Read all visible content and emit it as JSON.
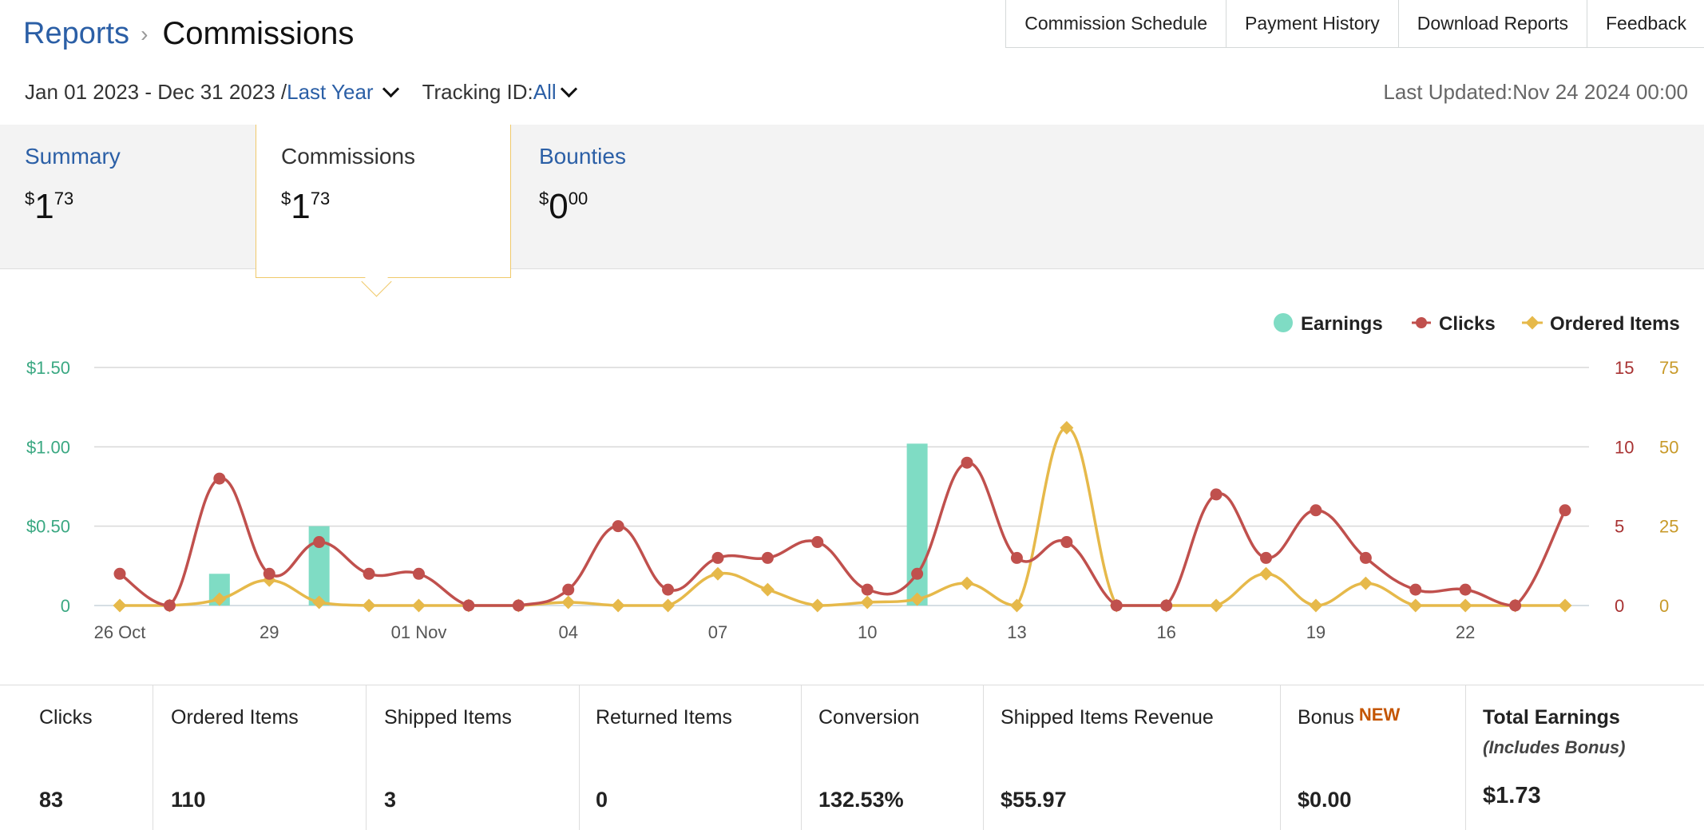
{
  "header": {
    "breadcrumb_parent": "Reports",
    "breadcrumb_current": "Commissions",
    "nav": [
      "Commission Schedule",
      "Payment History",
      "Download Reports",
      "Feedback"
    ],
    "date_range": "Jan 01 2023 - Dec 31 2023 /",
    "date_preset": "Last Year",
    "tracking_label": "Tracking ID:",
    "tracking_value": "All",
    "last_updated": "Last Updated:Nov 24 2024 00:00"
  },
  "tabs": [
    {
      "title": "Summary",
      "dollars": "1",
      "cents": "73"
    },
    {
      "title": "Commissions",
      "dollars": "1",
      "cents": "73"
    },
    {
      "title": "Bounties",
      "dollars": "0",
      "cents": "00"
    }
  ],
  "legend": [
    "Earnings",
    "Clicks",
    "Ordered Items"
  ],
  "colors": {
    "earnings": "#7fdcc4",
    "clicks": "#c0504d",
    "ordered": "#e6b94a",
    "left_axis": "#3aa882",
    "right_axis1": "#a83232",
    "right_axis2": "#c89a2a"
  },
  "chart_data": {
    "type": "line",
    "x": [
      "26 Oct",
      "27",
      "28",
      "29",
      "30",
      "31",
      "01 Nov",
      "02",
      "03",
      "04",
      "05",
      "06",
      "07",
      "08",
      "09",
      "10",
      "11",
      "12",
      "13",
      "14",
      "15",
      "16",
      "17",
      "18",
      "19",
      "20",
      "21",
      "22",
      "23",
      "24"
    ],
    "x_tick_labels": [
      "26 Oct",
      "29",
      "01 Nov",
      "04",
      "07",
      "10",
      "13",
      "16",
      "19",
      "22"
    ],
    "series": [
      {
        "name": "Earnings",
        "kind": "bar",
        "axis": "left",
        "values": [
          0,
          0,
          0.2,
          0,
          0.5,
          0,
          0,
          0,
          0,
          0,
          0,
          0,
          0,
          0,
          0,
          0,
          1.02,
          0,
          0,
          0,
          0,
          0,
          0,
          0,
          0,
          0,
          0,
          0,
          0,
          0
        ]
      },
      {
        "name": "Clicks",
        "kind": "line",
        "axis": "right1",
        "values": [
          2,
          0,
          8,
          2,
          4,
          2,
          2,
          0,
          0,
          1,
          5,
          1,
          3,
          3,
          4,
          1,
          2,
          9,
          3,
          4,
          0,
          0,
          7,
          3,
          6,
          3,
          1,
          1,
          0,
          6
        ]
      },
      {
        "name": "Ordered Items",
        "kind": "line",
        "axis": "right2",
        "values": [
          0,
          0,
          2,
          8,
          1,
          0,
          0,
          0,
          0,
          1,
          0,
          0,
          10,
          5,
          0,
          1,
          2,
          7,
          0,
          56,
          0,
          0,
          0,
          10,
          0,
          7,
          0,
          0,
          0,
          0
        ]
      }
    ],
    "y_left": {
      "ticks": [
        "0",
        "$0.50",
        "$1.00",
        "$1.50"
      ],
      "max": 1.5
    },
    "y_right1": {
      "ticks": [
        "0",
        "5",
        "10",
        "15"
      ],
      "max": 15
    },
    "y_right2": {
      "ticks": [
        "0",
        "25",
        "50",
        "75"
      ],
      "max": 75
    },
    "legend_position": "top-right",
    "grid": true
  },
  "stats": [
    {
      "label": "Clicks",
      "value": "83"
    },
    {
      "label": "Ordered Items",
      "value": "110"
    },
    {
      "label": "Shipped Items",
      "value": "3"
    },
    {
      "label": "Returned Items",
      "value": "0"
    },
    {
      "label": "Conversion",
      "value": "132.53%"
    },
    {
      "label": "Shipped Items Revenue",
      "value": "$55.97"
    },
    {
      "label": "Bonus",
      "badge": "NEW",
      "value": "$0.00"
    },
    {
      "label": "Total Earnings",
      "sub": "(Includes Bonus)",
      "value": "$1.73"
    }
  ]
}
